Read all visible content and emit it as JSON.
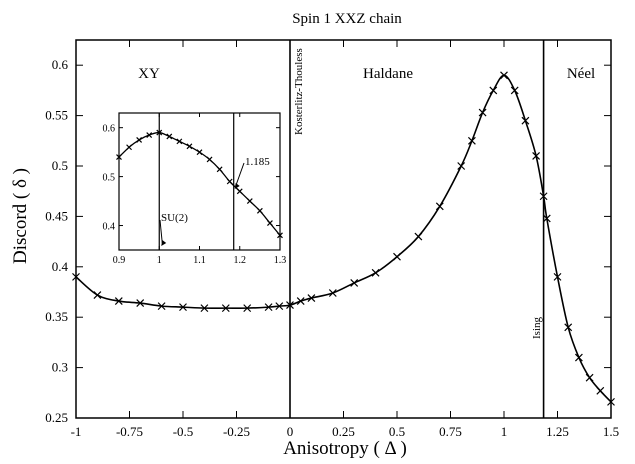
{
  "chart_data": [
    {
      "type": "line",
      "title": "Spin 1 XXZ chain",
      "xlabel": "Anisotropy ( Δ )",
      "ylabel": "Discord ( δ )",
      "xlim": [
        -1,
        1.5
      ],
      "ylim": [
        0.25,
        0.625
      ],
      "xticks": [
        -1,
        -0.75,
        -0.5,
        -0.25,
        0,
        0.25,
        0.5,
        0.75,
        1,
        1.25,
        1.5
      ],
      "xtick_labels": [
        "-1",
        "-0.75",
        "-0.5",
        "-0.25",
        "0",
        "0.25",
        "0.5",
        "0.75",
        "1",
        "1.25",
        "1.5"
      ],
      "yticks": [
        0.25,
        0.3,
        0.35,
        0.4,
        0.45,
        0.5,
        0.55,
        0.6
      ],
      "ytick_labels": [
        "0.25",
        "0.3",
        "0.35",
        "0.4",
        "0.45",
        "0.5",
        "0.55",
        "0.6"
      ],
      "grid": false,
      "series": [
        {
          "marker": "x",
          "x": [
            -1,
            -0.9,
            -0.8,
            -0.7,
            -0.6,
            -0.5,
            -0.4,
            -0.3,
            -0.2,
            -0.1,
            -0.05,
            0,
            0.05,
            0.1,
            0.2,
            0.3,
            0.4,
            0.5,
            0.6,
            0.7,
            0.8,
            0.85,
            0.9,
            0.95,
            1.0,
            1.05,
            1.1,
            1.15,
            1.185,
            1.2,
            1.25,
            1.3,
            1.35,
            1.4,
            1.45,
            1.5
          ],
          "y": [
            0.39,
            0.372,
            0.366,
            0.364,
            0.361,
            0.36,
            0.359,
            0.359,
            0.359,
            0.36,
            0.361,
            0.362,
            0.366,
            0.369,
            0.374,
            0.384,
            0.394,
            0.41,
            0.43,
            0.46,
            0.5,
            0.525,
            0.553,
            0.575,
            0.59,
            0.575,
            0.545,
            0.51,
            0.47,
            0.448,
            0.39,
            0.34,
            0.31,
            0.29,
            0.277,
            0.266
          ]
        }
      ],
      "vertical_lines": [
        {
          "x": 0,
          "label": "Kosterlitz-Thouless"
        },
        {
          "x": 1.185,
          "label": "Ising"
        }
      ],
      "regions": [
        "XY",
        "Haldane",
        "Néel"
      ]
    },
    {
      "type": "line",
      "title": "",
      "xlim": [
        0.9,
        1.3
      ],
      "ylim": [
        0.35,
        0.63
      ],
      "xticks": [
        0.9,
        1,
        1.1,
        1.2,
        1.3
      ],
      "xtick_labels": [
        "0.9",
        "1",
        "1.1",
        "1.2",
        "1.3"
      ],
      "yticks": [
        0.4,
        0.5,
        0.6
      ],
      "ytick_labels": [
        "0.4",
        "0.5",
        "0.6"
      ],
      "series": [
        {
          "marker": "x",
          "x": [
            0.9,
            0.925,
            0.95,
            0.975,
            1.0,
            1.025,
            1.05,
            1.075,
            1.1,
            1.125,
            1.15,
            1.175,
            1.2,
            1.225,
            1.25,
            1.275,
            1.3
          ],
          "y": [
            0.54,
            0.56,
            0.575,
            0.585,
            0.59,
            0.582,
            0.572,
            0.562,
            0.55,
            0.535,
            0.515,
            0.49,
            0.47,
            0.45,
            0.43,
            0.405,
            0.38
          ]
        }
      ],
      "vertical_lines": [
        {
          "x": 1.0
        },
        {
          "x": 1.185
        }
      ],
      "annotations": [
        {
          "text": "1.185",
          "x": 1.185
        },
        {
          "text": "SU(2)",
          "x": 1.0
        }
      ]
    }
  ]
}
